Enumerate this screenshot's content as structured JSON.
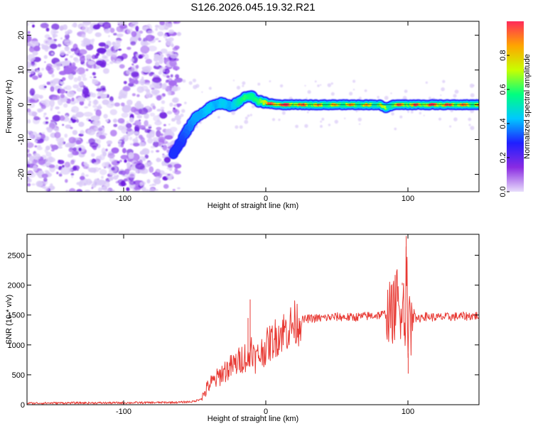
{
  "title": "S126.2026.045.19.32.R21",
  "chart_data": [
    {
      "type": "heatmap",
      "name": "spectrogram",
      "xlabel": "Height of straight line (km)",
      "ylabel": "Frequency (Hz)",
      "xlim": [
        -168,
        150
      ],
      "ylim": [
        -25,
        24
      ],
      "x_ticks": [
        -100,
        0,
        100
      ],
      "y_ticks": [
        20,
        10,
        0,
        -10,
        -20
      ],
      "noise_region_x": [
        -168,
        -65
      ],
      "ridge": {
        "x": [
          -65,
          -60,
          -55,
          -50,
          -45,
          -40,
          -35,
          -30,
          -25,
          -20,
          -15,
          -10,
          -5,
          0,
          10,
          20,
          40,
          60,
          80,
          85,
          90,
          100,
          120,
          150
        ],
        "y": [
          -14,
          -11,
          -7,
          -4,
          -2.5,
          -1,
          0,
          0.5,
          -0.5,
          0.5,
          2,
          2.5,
          1,
          0.5,
          0,
          0,
          0,
          0,
          0,
          -1,
          0,
          0,
          0,
          0
        ],
        "amp": [
          0.3,
          0.3,
          0.35,
          0.4,
          0.4,
          0.45,
          0.4,
          0.45,
          0.4,
          0.5,
          0.6,
          0.55,
          0.6,
          0.75,
          0.95,
          0.8,
          0.7,
          0.7,
          0.65,
          0.55,
          0.75,
          0.8,
          0.85,
          0.7
        ]
      },
      "colorbar": {
        "label": "Normalized spectral amplitude",
        "range": [
          0,
          1
        ],
        "ticks": [
          "0.0",
          "0.2",
          "0.4",
          "0.6",
          "0.8"
        ],
        "colors": [
          "#e8ddfb",
          "#8a2be2",
          "#1f1fff",
          "#00c8ff",
          "#00ff80",
          "#c8ff00",
          "#ffa500",
          "#ff2a5a"
        ]
      }
    },
    {
      "type": "line",
      "name": "snr",
      "xlabel": "Height of straight line (km)",
      "ylabel": "SNR (10 * v/v)",
      "xlim": [
        -168,
        150
      ],
      "ylim": [
        0,
        2850
      ],
      "x_ticks": [
        -100,
        0,
        100
      ],
      "y_ticks": [
        0,
        500,
        1000,
        1500,
        2000,
        2500
      ],
      "color": "#e83a34",
      "series": [
        {
          "name": "SNR",
          "x": [
            -168,
            -140,
            -110,
            -80,
            -60,
            -50,
            -45,
            -40,
            -35,
            -30,
            -25,
            -20,
            -15,
            -12,
            -10,
            -8,
            -5,
            0,
            5,
            10,
            15,
            20,
            25,
            30,
            40,
            50,
            60,
            70,
            80,
            85,
            90,
            92,
            94,
            96,
            98,
            99,
            100,
            101,
            102,
            104,
            106,
            110,
            120,
            130,
            140,
            150
          ],
          "y": [
            25,
            30,
            30,
            35,
            40,
            55,
            110,
            330,
            420,
            550,
            620,
            700,
            820,
            700,
            1050,
            760,
            820,
            960,
            1080,
            1200,
            1260,
            1350,
            1410,
            1440,
            1450,
            1470,
            1460,
            1480,
            1500,
            1520,
            1550,
            1800,
            1450,
            2000,
            1300,
            2800,
            600,
            1900,
            1200,
            1700,
            1400,
            1480,
            1460,
            1470,
            1480,
            1490
          ]
        }
      ]
    }
  ]
}
